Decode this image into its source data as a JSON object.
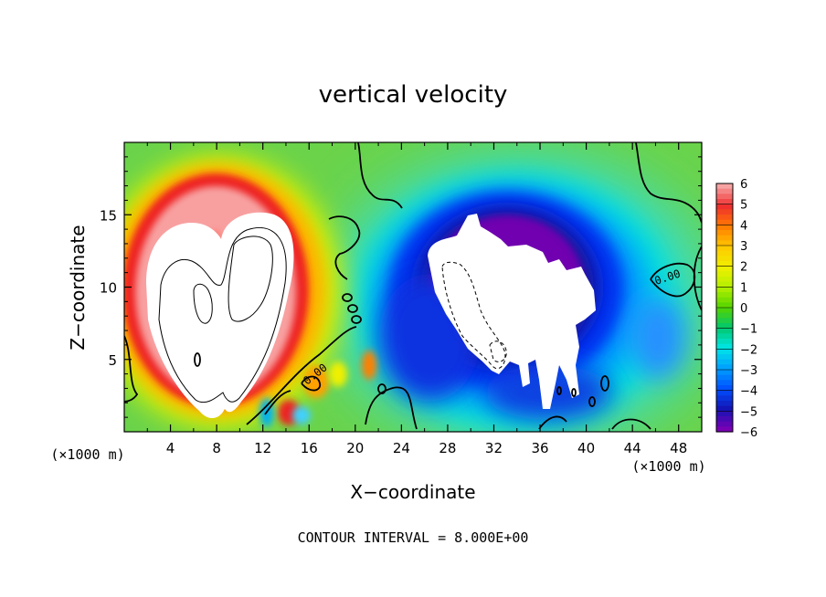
{
  "chart_data": {
    "type": "heatmap",
    "title": "vertical velocity",
    "xlabel": "X−coordinate",
    "ylabel": "Z−coordinate",
    "x_unit": "(×1000 m)",
    "y_unit": "(×1000 m)",
    "xlim": [
      0,
      50
    ],
    "ylim": [
      0,
      20
    ],
    "x_ticks": [
      4,
      8,
      12,
      16,
      20,
      24,
      28,
      32,
      36,
      40,
      44,
      48
    ],
    "y_ticks": [
      5,
      10,
      15
    ],
    "colorbar": {
      "labels": [
        "6",
        "5",
        "4",
        "3",
        "2",
        "1",
        "0",
        "−1",
        "−2",
        "−3",
        "−4",
        "−5",
        "−6"
      ],
      "range": [
        -6,
        6
      ]
    },
    "footer": "CONTOUR INTERVAL = 8.000E+00",
    "contour_labels": [
      "0.00",
      "0.00"
    ],
    "features": [
      {
        "kind": "updraft",
        "x_center": 8.0,
        "z_center": 9.5,
        "peak_sign": "positive"
      },
      {
        "kind": "downdraft",
        "x_center": 32.5,
        "z_center": 8.5,
        "peak_sign": "negative"
      }
    ]
  },
  "colors": {
    "background": "#6ad34a",
    "saturated_positive": "#ffffff",
    "saturated_negative": "#ffffff",
    "cbar_stops": [
      "#f7a3a3",
      "#ef2e2e",
      "#ff7c00",
      "#ffc800",
      "#f0f000",
      "#b4f000",
      "#54d400",
      "#00c86e",
      "#00e6e6",
      "#00a0ff",
      "#0050ff",
      "#1414b4",
      "#7800b4"
    ]
  }
}
